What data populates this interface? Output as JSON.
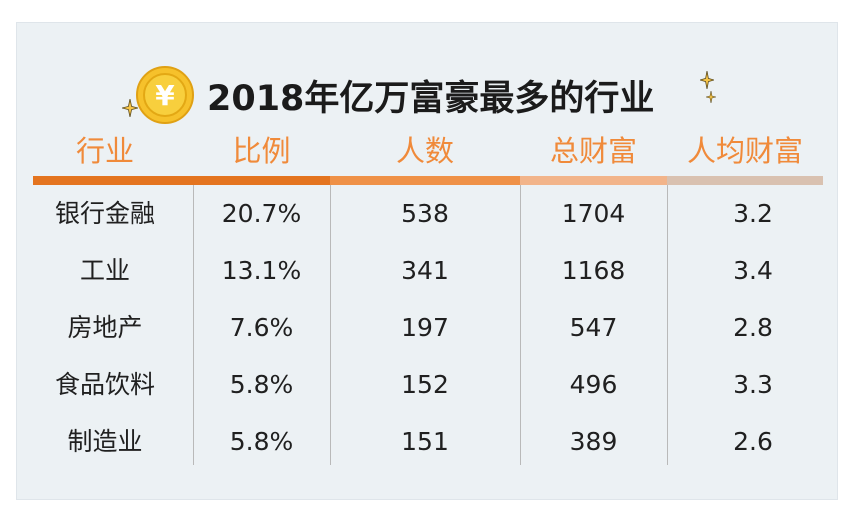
{
  "title": "2018年亿万富豪最多的行业",
  "coin_symbol": "¥",
  "colors": {
    "header_text": "#f08a3a",
    "bar_segments": [
      "#e4741f",
      "#ef9147",
      "#f2b48a",
      "#d9c1b0"
    ],
    "coin": "#f6c12b"
  },
  "table": {
    "headers": [
      "行业",
      "比例",
      "人数",
      "总财富",
      "人均财富"
    ],
    "rows": [
      [
        "银行金融",
        "20.7%",
        "538",
        "1704",
        "3.2"
      ],
      [
        "工业",
        "13.1%",
        "341",
        "1168",
        "3.4"
      ],
      [
        "房地产",
        "7.6%",
        "197",
        "547",
        "2.8"
      ],
      [
        "食品饮料",
        "5.8%",
        "152",
        "496",
        "3.3"
      ],
      [
        "制造业",
        "5.8%",
        "151",
        "389",
        "2.6"
      ]
    ]
  },
  "chart_data": {
    "type": "table",
    "title": "2018年亿万富豪最多的行业",
    "columns": [
      "行业",
      "比例",
      "人数",
      "总财富",
      "人均财富"
    ],
    "rows": [
      {
        "行业": "银行金融",
        "比例": 20.7,
        "人数": 538,
        "总财富": 1704,
        "人均财富": 3.2
      },
      {
        "行业": "工业",
        "比例": 13.1,
        "人数": 341,
        "总财富": 1168,
        "人均财富": 3.4
      },
      {
        "行业": "房地产",
        "比例": 7.6,
        "人数": 197,
        "总财富": 547,
        "人均财富": 2.8
      },
      {
        "行业": "食品饮料",
        "比例": 5.8,
        "人数": 152,
        "总财富": 496,
        "人均财富": 3.3
      },
      {
        "行业": "制造业",
        "比例": 5.8,
        "人数": 151,
        "总财富": 389,
        "人均财富": 2.6
      }
    ]
  }
}
